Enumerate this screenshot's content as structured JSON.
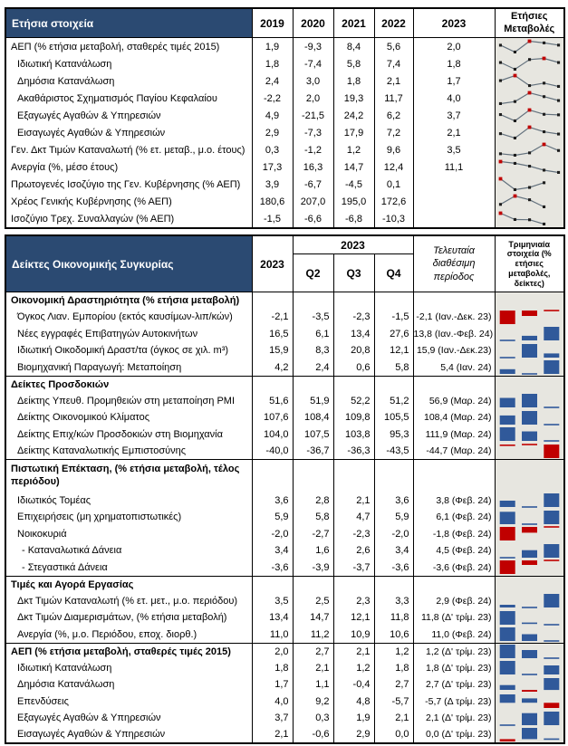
{
  "colors": {
    "header_bg": "#2b4a72",
    "header_text": "#ffffff",
    "bar_positive": "#30599a",
    "bar_negative": "#c00000",
    "spark_line": "#64727e",
    "spark_point": "#1d1d1d",
    "spark_high": "#c00000",
    "chart_bg": "#e7e6e0",
    "grid": "#000000"
  },
  "annual_table": {
    "title": "Ετήσια στοιχεία",
    "years": [
      "2019",
      "2020",
      "2021",
      "2022",
      "2023"
    ],
    "changes_header": "Ετήσιες Μεταβολές",
    "rows": [
      {
        "label": "ΑΕΠ (% ετήσια μεταβολή, σταθερές τιμές 2015)",
        "indent": 0,
        "values": [
          "1,9",
          "-9,3",
          "8,4",
          "5,6",
          "2,0"
        ],
        "spark": [
          1.9,
          -9.3,
          8.4,
          5.6,
          2.0
        ]
      },
      {
        "label": "Ιδιωτική Κατανάλωση",
        "indent": 1,
        "values": [
          "1,8",
          "-7,4",
          "5,8",
          "7,4",
          "1,8"
        ],
        "spark": [
          1.8,
          -7.4,
          5.8,
          7.4,
          1.8
        ]
      },
      {
        "label": "Δημόσια Κατανάλωση",
        "indent": 1,
        "values": [
          "2,4",
          "3,0",
          "1,8",
          "2,1",
          "1,7"
        ],
        "spark": [
          2.4,
          3.0,
          1.8,
          2.1,
          1.7
        ]
      },
      {
        "label": "Ακαθάριστος Σχηματισμός Παγίου Κεφαλαίου",
        "indent": 1,
        "values": [
          "-2,2",
          "2,0",
          "19,3",
          "11,7",
          "4,0"
        ],
        "spark": [
          -2.2,
          2.0,
          19.3,
          11.7,
          4.0
        ]
      },
      {
        "label": "Εξαγωγές Αγαθών & Υπηρεσιών",
        "indent": 1,
        "values": [
          "4,9",
          "-21,5",
          "24,2",
          "6,2",
          "3,7"
        ],
        "spark": [
          4.9,
          -21.5,
          24.2,
          6.2,
          3.7
        ]
      },
      {
        "label": "Εισαγωγές Αγαθών & Υπηρεσιών",
        "indent": 1,
        "values": [
          "2,9",
          "-7,3",
          "17,9",
          "7,2",
          "2,1"
        ],
        "spark": [
          2.9,
          -7.3,
          17.9,
          7.2,
          2.1
        ]
      },
      {
        "label": "Γεν. Δκτ Τιμών Καταναλωτή (% ετ. μεταβ., μ.ο. έτους)",
        "indent": 0,
        "values": [
          "0,3",
          "-1,2",
          "1,2",
          "9,6",
          "3,5"
        ],
        "spark": [
          0.3,
          -1.2,
          1.2,
          9.6,
          3.5
        ]
      },
      {
        "label": "Ανεργία (%, μέσο έτους)",
        "indent": 0,
        "values": [
          "17,3",
          "16,3",
          "14,7",
          "12,4",
          "11,1"
        ],
        "spark": [
          17.3,
          16.3,
          14.7,
          12.4,
          11.1
        ]
      },
      {
        "label": "Πρωτογενές Ισοζύγιο της Γεν. Κυβέρνησης (% ΑΕΠ)",
        "indent": 0,
        "values": [
          "3,9",
          "-6,7",
          "-4,5",
          "0,1",
          ""
        ],
        "spark": [
          3.9,
          -6.7,
          -4.5,
          0.1
        ]
      },
      {
        "label": "Χρέος Γενικής Κυβέρνησης (% ΑΕΠ)",
        "indent": 0,
        "values": [
          "180,6",
          "207,0",
          "195,0",
          "172,6",
          ""
        ],
        "spark": [
          180.6,
          207.0,
          195.0,
          172.6
        ]
      },
      {
        "label": "Ισοζύγιο Τρεχ. Συναλλαγών (% ΑΕΠ)",
        "indent": 0,
        "values": [
          "-1,5",
          "-6,6",
          "-6,8",
          "-10,3",
          ""
        ],
        "spark": [
          -1.5,
          -6.6,
          -6.8,
          -10.3
        ]
      }
    ]
  },
  "quarterly_table": {
    "title": "Δείκτες Οικονομικής Συγκυρίας",
    "annual_col": "2023",
    "quarter_group": "2023",
    "quarters": [
      "Q2",
      "Q3",
      "Q4"
    ],
    "latest_header": "Τελευταία διαθέσιμη περίοδος",
    "bars_header": "Τριμηνιαία στοιχεία (% ετήσιες μεταβολές, δείκτες)",
    "rows": [
      {
        "label": "Οικονομική Δραστηριότητα (% ετήσια μεταβολή)",
        "section": true
      },
      {
        "label": "Όγκος Λιαν. Εμπορίου (εκτός καυσίμων-λιπ/κών)",
        "indent": 1,
        "values": [
          "-2,1",
          "-3,5",
          "-2,3",
          "-1,5"
        ],
        "latest": "-2,1 (Ιαν.-Δεκ. 23)",
        "bars": [
          -3.5,
          -2.3,
          -1.5
        ]
      },
      {
        "label": "Νέες εγγραφές Επιβατηγών Αυτοκινήτων",
        "indent": 1,
        "values": [
          "16,5",
          "6,1",
          "13,4",
          "27,6"
        ],
        "latest": "13,8 (Ιαν.-Φεβ. 24)",
        "bars": [
          6.1,
          13.4,
          27.6
        ]
      },
      {
        "label": "Ιδιωτική Οικοδομική Δραστ/τα (όγκος σε χιλ. m³)",
        "indent": 1,
        "values": [
          "15,9",
          "8,3",
          "20,8",
          "12,1"
        ],
        "latest": "15,9 (Ιαν.-Δεκ.23)",
        "bars": [
          8.3,
          20.8,
          12.1
        ]
      },
      {
        "label": "Βιομηχανική Παραγωγή: Μεταποίηση",
        "indent": 1,
        "values": [
          "4,2",
          "2,4",
          "0,6",
          "5,8"
        ],
        "latest": "5,4 (Ιαν. 24)",
        "bars": [
          2.4,
          0.6,
          5.8
        ]
      },
      {
        "label": "Δείκτες Προσδοκιών",
        "section": true
      },
      {
        "label": "Δείκτης Υπευθ. Προμηθειών στη μεταποίηση PMI",
        "indent": 1,
        "values": [
          "51,6",
          "51,9",
          "52,2",
          "51,2"
        ],
        "latest": "56,9 (Μαρ. 24)",
        "bars": [
          51.9,
          52.2,
          51.2
        ]
      },
      {
        "label": "Δείκτης Οικονομικού Κλίματος",
        "indent": 1,
        "values": [
          "107,6",
          "108,4",
          "109,8",
          "105,5"
        ],
        "latest": "108,4 (Μαρ. 24)",
        "bars": [
          108.4,
          109.8,
          105.5
        ]
      },
      {
        "label": "Δείκτης Επιχ/κών Προσδοκιών στη Βιομηχανία",
        "indent": 1,
        "values": [
          "104,0",
          "107,5",
          "103,8",
          "95,3"
        ],
        "latest": "111,9 (Μαρ. 24)",
        "bars": [
          107.5,
          103.8,
          95.3
        ]
      },
      {
        "label": "Δείκτης Καταναλωτικής Εμπιστοσύνης",
        "indent": 1,
        "values": [
          "-40,0",
          "-36,7",
          "-36,3",
          "-43,5"
        ],
        "latest": "-44,7 (Μαρ. 24)",
        "bars": [
          -36.7,
          -36.3,
          -43.5
        ]
      },
      {
        "label": "Πιστωτική Επέκταση, (% ετήσια μεταβολή, τέλος περιόδου)",
        "section": true,
        "tall": true
      },
      {
        "label": "Ιδιωτικός Τομέας",
        "indent": 1,
        "values": [
          "3,6",
          "2,8",
          "2,1",
          "3,6"
        ],
        "latest": "3,8 (Φεβ. 24)",
        "bars": [
          2.8,
          2.1,
          3.6
        ]
      },
      {
        "label": "Επιχειρήσεις (μη χρηματοπιστωτικές)",
        "indent": 1,
        "values": [
          "5,9",
          "5,8",
          "4,7",
          "5,9"
        ],
        "latest": "6,1 (Φεβ. 24)",
        "bars": [
          5.8,
          4.7,
          5.9
        ]
      },
      {
        "label": "Νοικοκυριά",
        "indent": 1,
        "values": [
          "-2,0",
          "-2,7",
          "-2,3",
          "-2,0"
        ],
        "latest": "-1,8 (Φεβ. 24)",
        "bars": [
          -2.7,
          -2.3,
          -2.0
        ]
      },
      {
        "label": "- Καταναλωτικά Δάνεια",
        "indent": 2,
        "values": [
          "3,4",
          "1,6",
          "2,6",
          "3,4"
        ],
        "latest": "4,5 (Φεβ. 24)",
        "bars": [
          1.6,
          2.6,
          3.4
        ]
      },
      {
        "label": "- Στεγαστικά Δάνεια",
        "indent": 2,
        "values": [
          "-3,6",
          "-3,9",
          "-3,7",
          "-3,6"
        ],
        "latest": "-3,6 (Φεβ. 24)",
        "bars": [
          -3.9,
          -3.7,
          -3.6
        ]
      },
      {
        "label": "Τιμές και Αγορά Εργασίας",
        "section": true
      },
      {
        "label": "Δκτ Τιμών Καταναλωτή (% ετ. μετ., μ.ο. περιόδου)",
        "indent": 1,
        "values": [
          "3,5",
          "2,5",
          "2,3",
          "3,3"
        ],
        "latest": "2,9 (Φεβ. 24)",
        "bars": [
          2.5,
          2.3,
          3.3
        ]
      },
      {
        "label": "Δκτ Τιμών Διαμερισμάτων, (% ετήσια μεταβολή)",
        "indent": 1,
        "values": [
          "13,4",
          "14,7",
          "12,1",
          "11,8"
        ],
        "latest": "11,8 (Δ' τρίμ. 23)",
        "bars": [
          14.7,
          12.1,
          11.8
        ]
      },
      {
        "label": "Ανεργία (%, μ.ο. Περιόδου, εποχ. διορθ.)",
        "indent": 1,
        "values": [
          "11,0",
          "11,2",
          "10,9",
          "10,6"
        ],
        "latest": "11,0 (Φεβ. 24)",
        "bars": [
          11.2,
          10.9,
          10.6
        ]
      },
      {
        "label": "ΑΕΠ (% ετήσια μεταβολή, σταθερές τιμές 2015)",
        "section": true,
        "values": [
          "2,0",
          "2,7",
          "2,1",
          "1,2"
        ],
        "latest": "1,2 (Δ' τρίμ. 23)",
        "bars": [
          2.7,
          2.1,
          1.2
        ]
      },
      {
        "label": "Ιδιωτική Κατανάλωση",
        "indent": 1,
        "values": [
          "1,8",
          "2,1",
          "1,2",
          "1,8"
        ],
        "latest": "1,8 (Δ' τρίμ. 23)",
        "bars": [
          2.1,
          1.2,
          1.8
        ]
      },
      {
        "label": "Δημόσια Κατανάλωση",
        "indent": 1,
        "values": [
          "1,7",
          "1,1",
          "-0,4",
          "2,7"
        ],
        "latest": "2,7 (Δ' τρίμ. 23)",
        "bars": [
          1.1,
          -0.4,
          2.7
        ]
      },
      {
        "label": "Επενδύσεις",
        "indent": 1,
        "values": [
          "4,0",
          "9,2",
          "4,8",
          "-5,7"
        ],
        "latest": "-5,7 (Δ τρίμ. 23)",
        "bars": [
          9.2,
          4.8,
          -5.7
        ]
      },
      {
        "label": "Εξαγωγές Αγαθών & Υπηρεσιών",
        "indent": 1,
        "values": [
          "3,7",
          "0,3",
          "1,9",
          "2,1"
        ],
        "latest": "2,1 (Δ' τρίμ. 23)",
        "bars": [
          0.3,
          1.9,
          2.1
        ]
      },
      {
        "label": "Εισαγωγές Αγαθών & Υπηρεσιών",
        "indent": 1,
        "values": [
          "2,1",
          "-0,6",
          "2,9",
          "0,0"
        ],
        "latest": "0,0 (Δ' τρίμ. 23)",
        "bars": [
          -0.6,
          2.9,
          0.0
        ]
      }
    ]
  }
}
